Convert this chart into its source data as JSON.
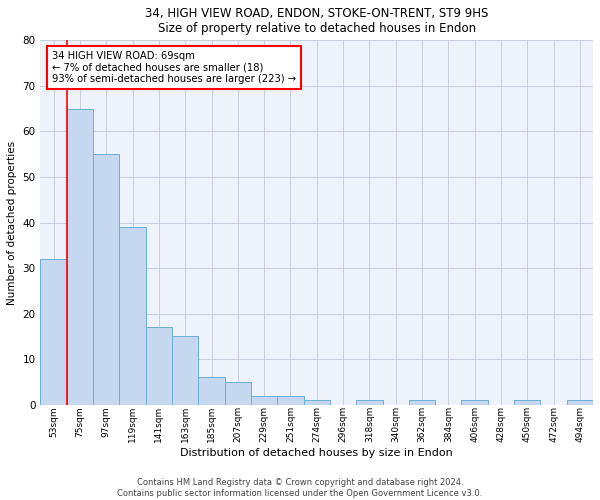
{
  "title1": "34, HIGH VIEW ROAD, ENDON, STOKE-ON-TRENT, ST9 9HS",
  "title2": "Size of property relative to detached houses in Endon",
  "xlabel": "Distribution of detached houses by size in Endon",
  "ylabel": "Number of detached properties",
  "bar_labels": [
    "53sqm",
    "75sqm",
    "97sqm",
    "119sqm",
    "141sqm",
    "163sqm",
    "185sqm",
    "207sqm",
    "229sqm",
    "251sqm",
    "274sqm",
    "296sqm",
    "318sqm",
    "340sqm",
    "362sqm",
    "384sqm",
    "406sqm",
    "428sqm",
    "450sqm",
    "472sqm",
    "494sqm"
  ],
  "bar_values": [
    32,
    65,
    55,
    39,
    17,
    15,
    6,
    5,
    2,
    2,
    1,
    0,
    1,
    0,
    1,
    0,
    1,
    0,
    1,
    0,
    1
  ],
  "bar_color": "#c5d8f0",
  "bar_edge_color": "#6baed6",
  "marker_label_line1": "34 HIGH VIEW ROAD: 69sqm",
  "marker_label_line2": "← 7% of detached houses are smaller (18)",
  "marker_label_line3": "93% of semi-detached houses are larger (223) →",
  "ylim": [
    0,
    80
  ],
  "yticks": [
    0,
    10,
    20,
    30,
    40,
    50,
    60,
    70,
    80
  ],
  "footer": "Contains HM Land Registry data © Crown copyright and database right 2024.\nContains public sector information licensed under the Open Government Licence v3.0.",
  "bg_color": "#eef2fb",
  "grid_color": "#c0c8d8"
}
